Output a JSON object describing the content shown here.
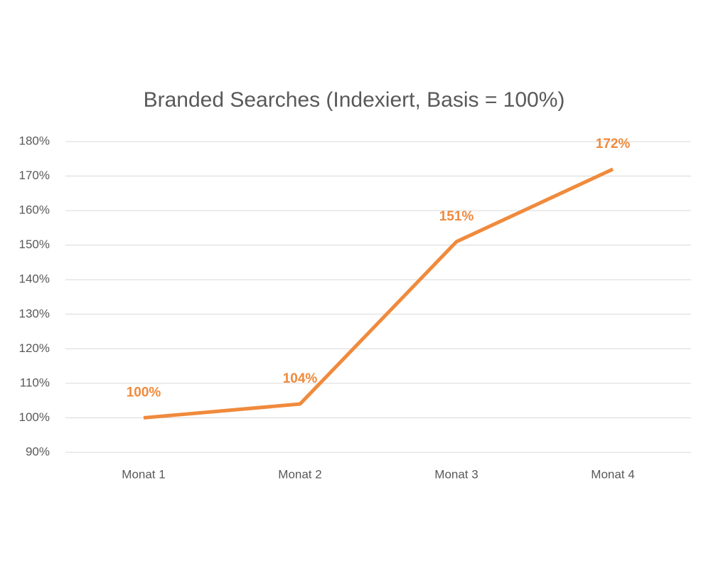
{
  "chart_data": {
    "type": "line",
    "title": "Branded Searches (Indexiert, Basis = 100%)",
    "categories": [
      "Monat 1",
      "Monat 2",
      "Monat 3",
      "Monat 4"
    ],
    "values": [
      100,
      104,
      151,
      172
    ],
    "value_labels": [
      "100%",
      "104%",
      "151%",
      "172%"
    ],
    "color": "#f08a3c",
    "ylim": [
      90,
      180
    ],
    "yticks": [
      {
        "value": 90,
        "label": "90%"
      },
      {
        "value": 100,
        "label": "100%"
      },
      {
        "value": 110,
        "label": "110%"
      },
      {
        "value": 120,
        "label": "120%"
      },
      {
        "value": 130,
        "label": "130%"
      },
      {
        "value": 140,
        "label": "140%"
      },
      {
        "value": 150,
        "label": "150%"
      },
      {
        "value": 160,
        "label": "160%"
      },
      {
        "value": 170,
        "label": "170%"
      },
      {
        "value": 180,
        "label": "180%"
      }
    ],
    "grid": true
  }
}
